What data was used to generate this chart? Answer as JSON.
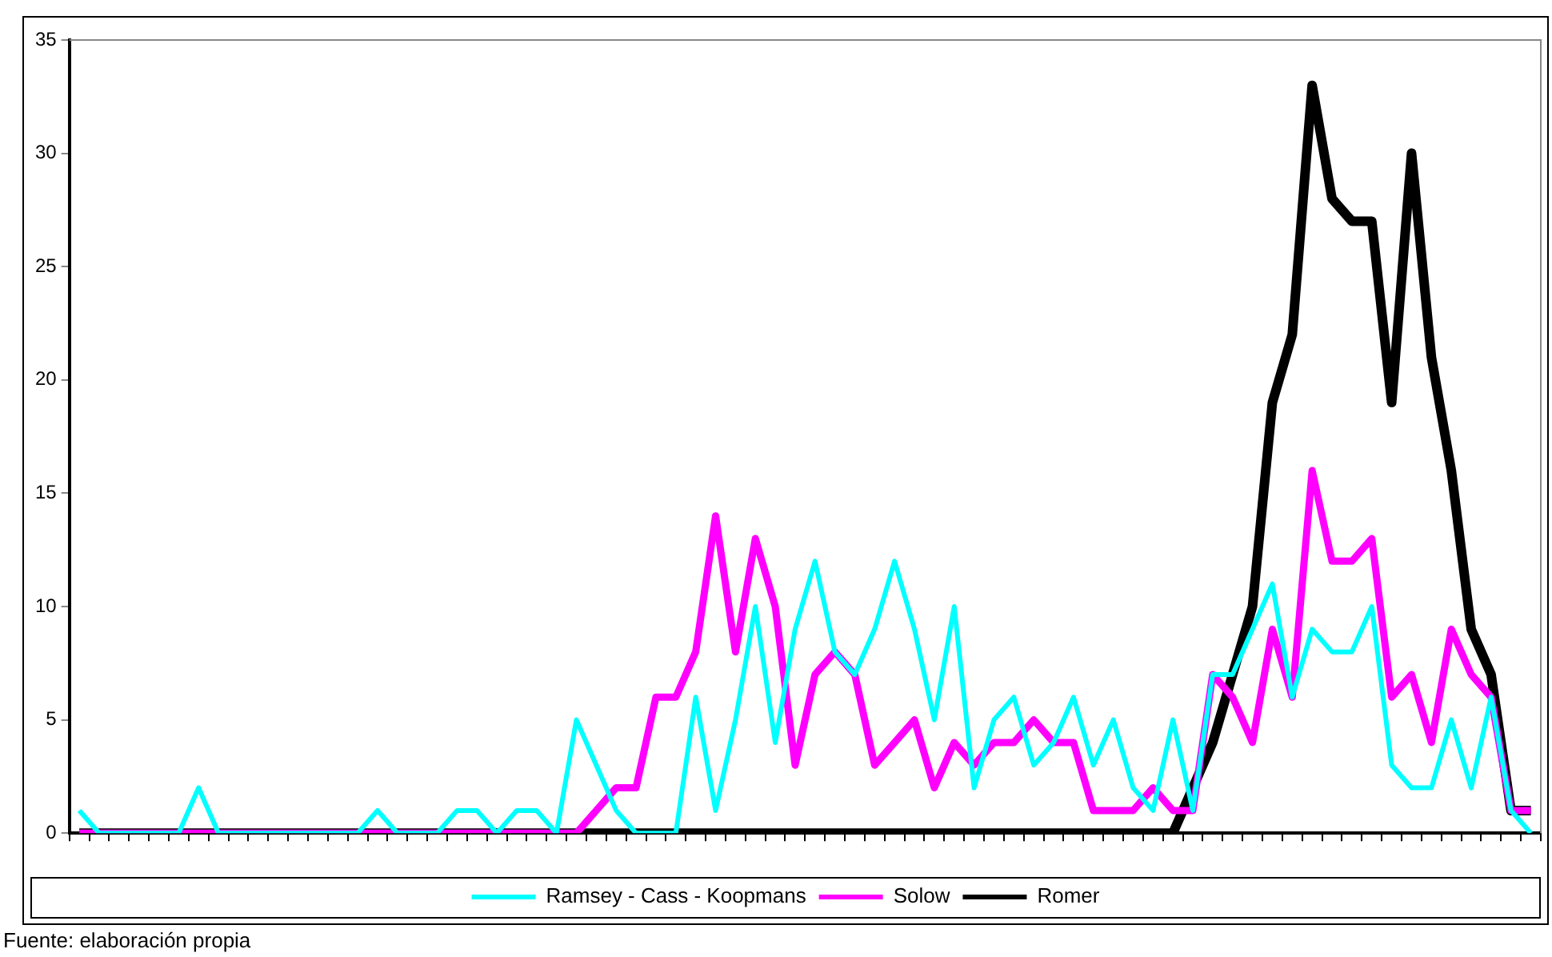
{
  "chart_data": {
    "type": "line",
    "categories": [
      null,
      null,
      null,
      null,
      null,
      null,
      null,
      null,
      null,
      null,
      null,
      null,
      null,
      null,
      null,
      null,
      null,
      null,
      null,
      null,
      null,
      null,
      null,
      null,
      null,
      null,
      null,
      null,
      null,
      null,
      null,
      null,
      null,
      null,
      null,
      null,
      null,
      null,
      null,
      null,
      null,
      null,
      null,
      null,
      null,
      null,
      null,
      null,
      null,
      null,
      null,
      null,
      null,
      null,
      null,
      null,
      null,
      null,
      null,
      null,
      null,
      null,
      null,
      null,
      null,
      null,
      null,
      null,
      null,
      null,
      null,
      null,
      null,
      null
    ],
    "series": [
      {
        "name": "Romer",
        "color": "#000000",
        "values": [
          0,
          0,
          0,
          0,
          0,
          0,
          0,
          0,
          0,
          0,
          0,
          0,
          0,
          0,
          0,
          0,
          0,
          0,
          0,
          0,
          0,
          0,
          0,
          0,
          0,
          0,
          0,
          0,
          0,
          0,
          0,
          0,
          0,
          0,
          0,
          0,
          0,
          0,
          0,
          0,
          0,
          0,
          0,
          0,
          0,
          0,
          0,
          0,
          0,
          0,
          0,
          0,
          0,
          0,
          0,
          0,
          2,
          4,
          7,
          10,
          19,
          22,
          33,
          28,
          27,
          27,
          19,
          30,
          21,
          16,
          9,
          7,
          1,
          1
        ]
      },
      {
        "name": "Solow",
        "color": "#ff00ff",
        "values": [
          0,
          0,
          0,
          0,
          0,
          0,
          0,
          0,
          0,
          0,
          0,
          0,
          0,
          0,
          0,
          0,
          0,
          0,
          0,
          0,
          0,
          0,
          0,
          0,
          0,
          0,
          1,
          2,
          2,
          6,
          6,
          8,
          14,
          8,
          13,
          10,
          3,
          7,
          8,
          7,
          3,
          4,
          5,
          2,
          4,
          3,
          4,
          4,
          5,
          4,
          4,
          1,
          1,
          1,
          2,
          1,
          1,
          7,
          6,
          4,
          9,
          6,
          16,
          12,
          12,
          13,
          6,
          7,
          4,
          9,
          7,
          6,
          1,
          1
        ]
      },
      {
        "name": "Ramsey - Cass - Koopmans",
        "color": "#00ffff",
        "values": [
          1,
          0,
          0,
          0,
          0,
          0,
          2,
          0,
          0,
          0,
          0,
          0,
          0,
          0,
          0,
          1,
          0,
          0,
          0,
          1,
          1,
          0,
          1,
          1,
          0,
          5,
          3,
          1,
          0,
          0,
          0,
          6,
          1,
          5,
          10,
          4,
          9,
          12,
          8,
          7,
          9,
          12,
          9,
          5,
          10,
          2,
          5,
          6,
          3,
          4,
          6,
          3,
          5,
          2,
          1,
          5,
          1,
          7,
          7,
          9,
          11,
          6,
          9,
          8,
          8,
          10,
          3,
          2,
          2,
          5,
          2,
          6,
          1,
          0
        ]
      }
    ],
    "ylim": [
      0,
      35
    ],
    "yticks": [
      0,
      5,
      10,
      15,
      20,
      25,
      30,
      35
    ],
    "grid": false,
    "legend": "bottom",
    "marker": "none",
    "line_style": "solid",
    "annotations": [
      "Fuente: elaboración propia"
    ]
  }
}
